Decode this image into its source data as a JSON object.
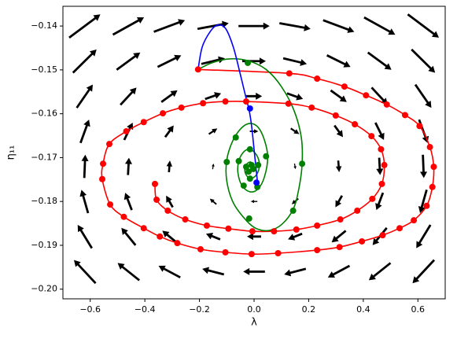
{
  "chart_data": {
    "type": "quiver",
    "x_label": "λ",
    "y_label": "η₁₁",
    "xlim": [
      -0.7,
      0.7
    ],
    "ylim": [
      -0.2022,
      -0.1355
    ],
    "xticks": [
      {
        "value": -0.6,
        "label": "−0.6"
      },
      {
        "value": -0.4,
        "label": "−0.4"
      },
      {
        "value": -0.2,
        "label": "−0.2"
      },
      {
        "value": 0,
        "label": "0.0"
      },
      0.2,
      0.4,
      0.6
    ],
    "yticks": [
      {
        "value": -0.14,
        "label": "−0.14"
      },
      {
        "value": -0.15,
        "label": "−0.15"
      },
      {
        "value": -0.16,
        "label": "−0.16"
      },
      {
        "value": -0.17,
        "label": "−0.17"
      },
      {
        "value": -0.18,
        "label": "−0.18"
      },
      {
        "value": -0.19,
        "label": "−0.19"
      },
      {
        "value": -0.2,
        "label": "−0.20"
      }
    ],
    "quiver": {
      "color": "#000000",
      "x": [
        -0.62,
        -0.46,
        -0.31,
        -0.15,
        0.0,
        0.15,
        0.31,
        0.46,
        0.62
      ],
      "rows": [
        {
          "y": -0.14,
          "u": [
            0.99,
            0.99,
            0.99,
            0.99,
            0.99,
            0.99,
            0.99,
            0.99,
            0.99
          ],
          "v": [
            0.74,
            0.55,
            0.37,
            0.18,
            0,
            -0.18,
            -0.37,
            -0.55,
            -0.74
          ]
        },
        {
          "y": -0.148,
          "u": [
            0.75,
            0.75,
            0.75,
            0.75,
            0.75,
            0.75,
            0.75,
            0.75,
            0.75
          ],
          "v": [
            0.74,
            0.55,
            0.37,
            0.18,
            0,
            -0.18,
            -0.37,
            -0.55,
            -0.74
          ]
        },
        {
          "y": -0.156,
          "u": [
            0.51,
            0.51,
            0.51,
            0.51,
            0.51,
            0.51,
            0.51,
            0.51,
            0.51
          ],
          "v": [
            0.74,
            0.55,
            0.37,
            0.18,
            0,
            -0.18,
            -0.37,
            -0.55,
            -0.74
          ]
        },
        {
          "y": -0.164,
          "u": [
            0.27,
            0.27,
            0.27,
            0.27,
            0.27,
            0.27,
            0.27,
            0.27,
            0.27
          ],
          "v": [
            0.74,
            0.55,
            0.37,
            0.18,
            0,
            -0.18,
            -0.37,
            -0.55,
            -0.74
          ]
        },
        {
          "y": -0.172,
          "u": [
            0.03,
            0.03,
            0.03,
            0.03,
            0.03,
            0.03,
            0.03,
            0.03,
            0.03
          ],
          "v": [
            0.74,
            0.55,
            0.37,
            0.18,
            0,
            -0.18,
            -0.37,
            -0.55,
            -0.74
          ]
        },
        {
          "y": -0.18,
          "u": [
            -0.21,
            -0.21,
            -0.21,
            -0.21,
            -0.21,
            -0.21,
            -0.21,
            -0.21,
            -0.21
          ],
          "v": [
            0.74,
            0.55,
            0.37,
            0.18,
            0,
            -0.18,
            -0.37,
            -0.55,
            -0.74
          ]
        },
        {
          "y": -0.188,
          "u": [
            -0.45,
            -0.45,
            -0.45,
            -0.45,
            -0.45,
            -0.45,
            -0.45,
            -0.45,
            -0.45
          ],
          "v": [
            0.74,
            0.55,
            0.37,
            0.18,
            0,
            -0.18,
            -0.37,
            -0.55,
            -0.74
          ]
        },
        {
          "y": -0.196,
          "u": [
            -0.69,
            -0.69,
            -0.69,
            -0.69,
            -0.69,
            -0.69,
            -0.69,
            -0.69,
            -0.69
          ],
          "v": [
            0.74,
            0.55,
            0.37,
            0.18,
            0,
            -0.18,
            -0.37,
            -0.55,
            -0.74
          ]
        }
      ]
    },
    "series": [
      {
        "color": "#ff0000",
        "line": true,
        "markers": true,
        "x": [
          -0.205,
          0.129,
          0.231,
          0.331,
          0.41,
          0.486,
          0.553,
          0.606,
          0.644,
          0.658,
          0.653,
          0.632,
          0.585,
          0.533,
          0.471,
          0.395,
          0.313,
          0.231,
          0.088,
          -0.009,
          -0.105,
          -0.196,
          -0.281,
          -0.345,
          -0.404,
          -0.477,
          -0.527,
          -0.556,
          -0.553,
          -0.53,
          -0.468,
          -0.404,
          -0.334,
          -0.266,
          -0.187,
          -0.105,
          -0.029,
          0.126,
          0.211,
          0.299,
          0.369,
          0.43,
          0.465,
          0.477,
          0.468,
          0.433,
          0.378,
          0.316,
          0.231,
          0.155,
          0.073,
          -0.006,
          -0.094,
          -0.173,
          -0.252,
          -0.316,
          -0.357,
          -0.363
        ],
        "y": [
          -0.1499,
          -0.1508,
          -0.152,
          -0.1538,
          -0.1558,
          -0.1579,
          -0.1603,
          -0.1628,
          -0.1676,
          -0.1721,
          -0.1767,
          -0.181,
          -0.1843,
          -0.1861,
          -0.1877,
          -0.1891,
          -0.1904,
          -0.1911,
          -0.1918,
          -0.192,
          -0.1916,
          -0.1909,
          -0.1895,
          -0.188,
          -0.1861,
          -0.1835,
          -0.1807,
          -0.1749,
          -0.1714,
          -0.1669,
          -0.164,
          -0.1619,
          -0.1599,
          -0.1586,
          -0.1576,
          -0.1572,
          -0.1572,
          -0.1577,
          -0.1586,
          -0.1604,
          -0.1624,
          -0.1651,
          -0.1681,
          -0.1717,
          -0.176,
          -0.1794,
          -0.1821,
          -0.1841,
          -0.1855,
          -0.1864,
          -0.1868,
          -0.1868,
          -0.1862,
          -0.1855,
          -0.1841,
          -0.1821,
          -0.1796,
          -0.176
        ]
      },
      {
        "color": "#008000",
        "line": true,
        "markers": false,
        "x": [
          -0.205,
          -0.155,
          -0.091,
          -0.023,
          0.044,
          0.1,
          0.146,
          0.173,
          0.176,
          0.164,
          0.143,
          0.102,
          0.056,
          0.009,
          -0.029,
          -0.076,
          -0.1,
          -0.1,
          -0.079,
          -0.047,
          -0.015,
          0.015,
          0.038,
          0.05,
          0.038,
          0.015,
          -0.015,
          -0.044,
          -0.059,
          -0.056,
          -0.038,
          -0.015,
          0.009,
          0.02,
          0.009,
          -0.015,
          -0.032,
          -0.032,
          -0.015,
          -0.003,
          -0.009
        ],
        "y": [
          -0.1499,
          -0.1484,
          -0.1475,
          -0.1479,
          -0.1499,
          -0.1538,
          -0.1592,
          -0.1654,
          -0.1714,
          -0.1771,
          -0.1818,
          -0.1852,
          -0.1866,
          -0.1862,
          -0.1843,
          -0.1803,
          -0.1753,
          -0.1706,
          -0.1663,
          -0.1633,
          -0.1622,
          -0.1631,
          -0.166,
          -0.1699,
          -0.1744,
          -0.1771,
          -0.1778,
          -0.1764,
          -0.1735,
          -0.1708,
          -0.1687,
          -0.1681,
          -0.1694,
          -0.1717,
          -0.1739,
          -0.1748,
          -0.1735,
          -0.1719,
          -0.171,
          -0.1717,
          -0.1726
        ]
      },
      {
        "color": "#008000",
        "line": false,
        "markers": true,
        "x": [
          -0.023,
          0.176,
          0.143,
          -0.018,
          -0.1,
          -0.067,
          0.044,
          0.012,
          -0.038,
          -0.056,
          -0.015,
          0.015,
          -0.015,
          -0.029,
          -0.009,
          -0.003,
          -0.02
        ],
        "y": [
          -0.1484,
          -0.1714,
          -0.1821,
          -0.1839,
          -0.171,
          -0.1654,
          -0.1697,
          -0.1767,
          -0.1764,
          -0.1708,
          -0.1681,
          -0.1717,
          -0.1748,
          -0.1721,
          -0.1717,
          -0.1726,
          -0.1732
        ]
      },
      {
        "color": "#0000ff",
        "line": true,
        "markers": false,
        "x": [
          -0.205,
          -0.19,
          -0.161,
          -0.135,
          -0.105,
          -0.076,
          -0.05,
          -0.029,
          -0.018,
          -0.009,
          0,
          0.012
        ],
        "y": [
          -0.1499,
          -0.1448,
          -0.1413,
          -0.1398,
          -0.1405,
          -0.1448,
          -0.1511,
          -0.1565,
          -0.1592,
          -0.1628,
          -0.1681,
          -0.1753
        ]
      },
      {
        "color": "#0000ff",
        "line": false,
        "markers": true,
        "x": [
          -0.015,
          0.009
        ],
        "y": [
          -0.1588,
          -0.1757
        ]
      }
    ]
  }
}
